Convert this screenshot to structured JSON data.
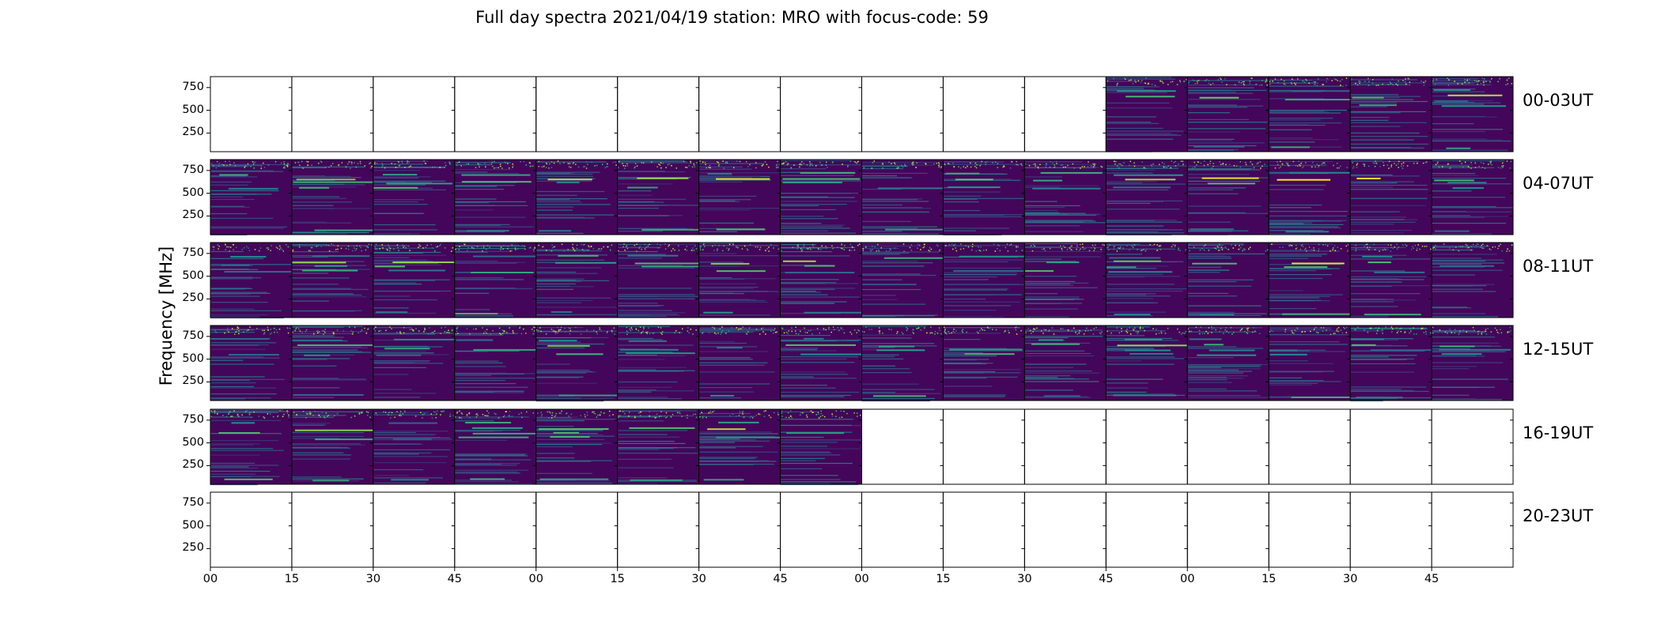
{
  "chart_data": {
    "type": "heatmap",
    "title": "Full day spectra 2021/04/19 station: MRO with focus-code: 59",
    "ylabel": "Frequency [MHz]",
    "xlabel": "",
    "colormap": "viridis",
    "colormap_colors": [
      "#440154",
      "#3b528b",
      "#21918c",
      "#5ec962",
      "#fde725"
    ],
    "background_color": "#44065a",
    "ylim": [
      45,
      870
    ],
    "yticks": [
      250,
      500,
      750
    ],
    "ytick_labels": [
      "250",
      "500",
      "750"
    ],
    "xtick_labels": [
      "00",
      "15",
      "30",
      "45",
      "00",
      "15",
      "30",
      "45",
      "00",
      "15",
      "30",
      "45",
      "00",
      "15",
      "30",
      "45"
    ],
    "minutes_per_panel": 15,
    "panels_per_row": 16,
    "rows": [
      {
        "label": "00-03UT",
        "panels_with_data": [
          11,
          12,
          13,
          14,
          15
        ]
      },
      {
        "label": "04-07UT",
        "panels_with_data": [
          0,
          1,
          2,
          3,
          4,
          5,
          6,
          7,
          8,
          9,
          10,
          11,
          12,
          13,
          14,
          15
        ]
      },
      {
        "label": "08-11UT",
        "panels_with_data": [
          0,
          1,
          2,
          3,
          4,
          5,
          6,
          7,
          8,
          9,
          10,
          11,
          12,
          13,
          14,
          15
        ]
      },
      {
        "label": "12-15UT",
        "panels_with_data": [
          0,
          1,
          2,
          3,
          4,
          5,
          6,
          7,
          8,
          9,
          10,
          11,
          12,
          13,
          14,
          15
        ]
      },
      {
        "label": "16-19UT",
        "panels_with_data": [
          0,
          1,
          2,
          3,
          4,
          5,
          6,
          7
        ]
      },
      {
        "label": "20-23UT",
        "panels_with_data": []
      }
    ],
    "persistent_lines_mhz": [
      660,
      620,
      560,
      100,
      720
    ]
  }
}
